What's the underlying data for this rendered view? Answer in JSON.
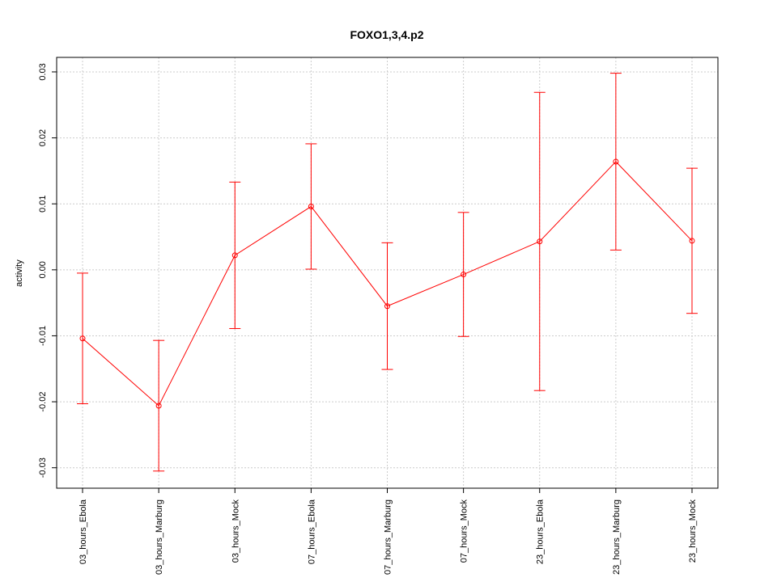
{
  "chart_data": {
    "type": "errorbar-line",
    "title": "FOXO1,3,4.p2",
    "y_label": "activity",
    "categories": [
      "03_hours_Ebola",
      "03_hours_Marburg",
      "03_hours_Mock",
      "07_hours_Ebola",
      "07_hours_Marburg",
      "07_hours_Mock",
      "23_hours_Ebola",
      "23_hours_Marburg",
      "23_hours_Mock"
    ],
    "values": [
      -0.0104,
      -0.0206,
      0.0022,
      0.0096,
      -0.0055,
      -0.0007,
      0.0043,
      0.0164,
      0.0044
    ],
    "errors": [
      0.0099,
      0.0099,
      0.0111,
      0.0095,
      0.0096,
      0.0094,
      0.0226,
      0.0134,
      0.011
    ],
    "color": "#ff0000",
    "ylim": [
      -0.0331,
      0.0322
    ],
    "yticks": [
      -0.03,
      -0.02,
      -0.01,
      {
        "value": 0,
        "label": "0.00"
      },
      0.01,
      0.02,
      0.03
    ],
    "grid": true
  }
}
